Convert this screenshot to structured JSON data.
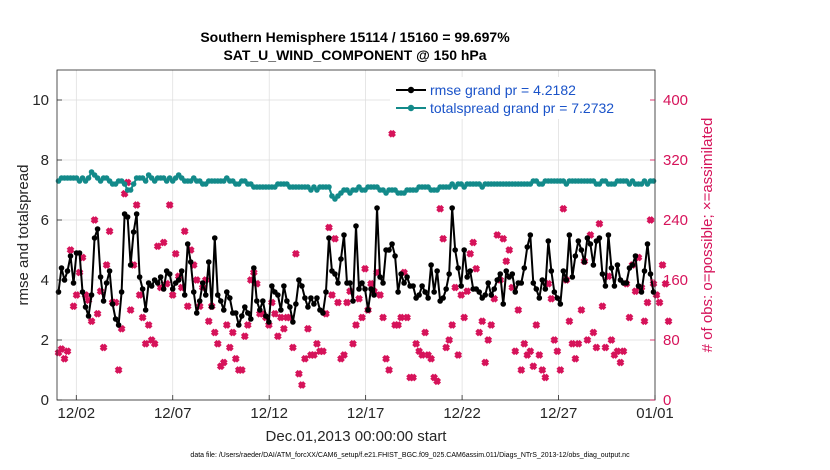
{
  "chart_data": {
    "type": "line",
    "title_line1": "Southern Hemisphere 15114 / 15160 = 99.697%",
    "title_line2": "SAT_U_WIND_COMPONENT @ 150 hPa",
    "xlabel": "Dec.01,2013 00:00:00 start",
    "ylabel_left": "rmse and totalspread",
    "ylabel_right": "# of obs: o=possible; ×=assimilated",
    "footer": "data file: /Users/raeder/DAI/ATM_forcXX/CAM6_setup/f.e21.FHIST_BGC.f09_025.CAM6assim.011/Diags_NTrS_2013-12/obs_diag_output.nc",
    "x_ticks": [
      "12/02",
      "12/07",
      "12/12",
      "12/17",
      "12/22",
      "12/27",
      "01/01"
    ],
    "y_left_ticks": [
      "0",
      "2",
      "4",
      "6",
      "8",
      "10"
    ],
    "y_right_ticks": [
      "0",
      "80",
      "160",
      "240",
      "320",
      "400"
    ],
    "ylim_left": [
      0,
      11
    ],
    "ylim_right": [
      0,
      440
    ],
    "colors": {
      "rmse": "#000000",
      "spread": "#138a8a",
      "obs": "#d6135a",
      "legend_text": "#1a53c9"
    },
    "series": [
      {
        "name": "rmse",
        "legend": "rmse grand pr = 4.2182",
        "values": [
          3.6,
          4.4,
          4.0,
          4.3,
          4.8,
          3.9,
          4.9,
          4.9,
          3.6,
          3.1,
          2.8,
          3.5,
          5.4,
          5.7,
          4.1,
          3.3,
          3.9,
          4.3,
          3.2,
          2.7,
          2.5,
          3.6,
          6.2,
          6.1,
          4.5,
          5.6,
          6.2,
          4.1,
          3.7,
          3.0,
          3.9,
          3.8,
          4.0,
          3.9,
          4.1,
          3.7,
          4.3,
          4.2,
          3.7,
          3.9,
          4.0,
          4.3,
          3.5,
          5.2,
          4.6,
          3.6,
          2.9,
          3.3,
          3.9,
          3.5,
          4.6,
          3.1,
          5.4,
          3.5,
          3.3,
          3.0,
          3.6,
          3.4,
          2.9,
          2.9,
          2.5,
          2.8,
          3.1,
          2.9,
          2.7,
          4.4,
          3.3,
          3.0,
          3.3,
          2.8,
          2.6,
          3.8,
          3.6,
          3.5,
          3.0,
          3.8,
          3.3,
          3.1,
          2.6,
          3.2,
          4.0,
          3.8,
          3.4,
          3.1,
          3.4,
          3.2,
          3.4,
          3.0,
          2.9,
          3.6,
          5.4,
          4.3,
          4.2,
          3.9,
          4.7,
          5.5,
          3.9,
          3.9,
          3.3,
          5.8,
          3.7,
          3.9,
          3.7,
          3.0,
          3.7,
          3.5,
          6.4,
          4.1,
          3.9,
          5.0,
          5.0,
          5.2,
          4.8,
          3.6,
          4.2,
          3.9,
          4.1,
          3.8,
          3.8,
          3.4,
          3.5,
          3.8,
          3.6,
          3.4,
          4.5,
          3.6,
          4.3,
          3.3,
          3.4,
          3.7,
          4.2,
          6.4,
          5.0,
          4.4,
          3.8,
          5.0,
          4.1,
          4.3,
          3.7,
          3.7,
          3.6,
          3.4,
          3.5,
          3.9,
          3.5,
          3.7,
          4.0,
          4.2,
          3.2,
          4.3,
          4.1,
          4.2,
          3.6,
          3.9,
          3.9,
          4.4,
          5.1,
          5.5,
          3.9,
          3.7,
          3.4,
          4.0,
          3.7,
          5.3,
          4.3,
          3.6,
          3.4,
          3.2,
          4.3,
          4.0,
          5.5,
          4.1,
          4.8,
          5.3,
          5.0,
          4.6,
          5.4,
          5.2,
          4.5,
          5.3,
          5.4,
          4.2,
          3.8,
          5.5,
          4.4,
          3.8,
          4.5,
          4.0,
          3.9,
          3.9,
          4.4,
          4.5,
          4.8,
          3.8,
          3.6,
          4.3,
          5.2,
          4.2,
          3.6
        ]
      },
      {
        "name": "totalspread",
        "legend": "totalspread grand pr = 7.2732",
        "values": [
          7.3,
          7.4,
          7.4,
          7.4,
          7.4,
          7.4,
          7.4,
          7.3,
          7.4,
          7.3,
          7.4,
          7.6,
          7.5,
          7.4,
          7.3,
          7.4,
          7.4,
          7.3,
          7.2,
          7.2,
          7.3,
          7.3,
          7.2,
          7.0,
          7.0,
          7.2,
          7.4,
          7.4,
          7.4,
          7.3,
          7.5,
          7.4,
          7.3,
          7.4,
          7.4,
          7.4,
          7.3,
          7.4,
          7.3,
          7.4,
          7.5,
          7.4,
          7.3,
          7.3,
          7.3,
          7.4,
          7.3,
          7.3,
          7.2,
          7.2,
          7.3,
          7.3,
          7.3,
          7.3,
          7.3,
          7.3,
          7.4,
          7.3,
          7.3,
          7.2,
          7.2,
          7.3,
          7.3,
          7.2,
          7.2,
          7.1,
          7.1,
          7.1,
          7.1,
          7.1,
          7.1,
          7.1,
          7.1,
          7.2,
          7.2,
          7.2,
          7.2,
          7.1,
          7.1,
          7.1,
          7.1,
          7.1,
          7.1,
          7.1,
          7.0,
          7.1,
          7.0,
          7.1,
          7.1,
          7.1,
          7.1,
          6.8,
          6.7,
          6.8,
          6.9,
          7.0,
          7.0,
          6.9,
          7.0,
          7.0,
          7.1,
          7.0,
          7.0,
          7.1,
          7.1,
          7.1,
          7.1,
          7.0,
          7.0,
          6.9,
          7.0,
          7.0,
          7.0,
          6.9,
          6.9,
          6.9,
          7.0,
          7.0,
          7.0,
          7.0,
          7.1,
          7.1,
          7.1,
          7.1,
          7.0,
          7.0,
          7.0,
          7.1,
          7.1,
          7.1,
          7.1,
          7.2,
          7.1,
          7.2,
          7.2,
          7.1,
          7.2,
          7.2,
          7.2,
          7.2,
          7.2,
          7.1,
          7.2,
          7.2,
          7.2,
          7.2,
          7.2,
          7.2,
          7.2,
          7.2,
          7.2,
          7.2,
          7.2,
          7.2,
          7.2,
          7.2,
          7.2,
          7.2,
          7.3,
          7.3,
          7.2,
          7.2,
          7.3,
          7.3,
          7.3,
          7.3,
          7.3,
          7.3,
          7.3,
          7.2,
          7.3,
          7.3,
          7.3,
          7.3,
          7.3,
          7.3,
          7.3,
          7.3,
          7.3,
          7.2,
          7.2,
          7.3,
          7.3,
          7.2,
          7.2,
          7.2,
          7.3,
          7.3,
          7.3,
          7.3,
          7.2,
          7.3,
          7.2,
          7.2,
          7.2,
          7.3,
          7.2,
          7.3,
          7.3
        ]
      },
      {
        "name": "obs_assimilated",
        "legend": "",
        "axis": "right",
        "values": [
          63,
          68,
          55,
          65,
          200,
          125,
          140,
          170,
          190,
          140,
          133,
          105,
          240,
          115,
          145,
          70,
          180,
          225,
          130,
          130,
          40,
          95,
          275,
          290,
          120,
          180,
          260,
          140,
          110,
          75,
          100,
          80,
          75,
          205,
          150,
          210,
          155,
          260,
          140,
          195,
          165,
          150,
          225,
          125,
          200,
          180,
          160,
          125,
          150,
          160,
          105,
          125,
          90,
          75,
          45,
          50,
          100,
          70,
          90,
          55,
          40,
          40,
          85,
          100,
          160,
          170,
          155,
          115,
          115,
          110,
          100,
          130,
          115,
          85,
          110,
          95,
          110,
          110,
          70,
          195,
          35,
          20,
          55,
          95,
          60,
          60,
          75,
          65,
          65,
          115,
          230,
          140,
          215,
          130,
          55,
          60,
          130,
          145,
          75,
          100,
          135,
          110,
          175,
          120,
          155,
          145,
          170,
          140,
          110,
          55,
          40,
          355,
          100,
          100,
          110,
          170,
          110,
          30,
          30,
          75,
          65,
          60,
          90,
          60,
          55,
          30,
          25,
          255,
          215,
          70,
          80,
          100,
          150,
          60,
          140,
          110,
          145,
          195,
          210,
          175,
          90,
          105,
          50,
          80,
          100,
          135,
          220,
          160,
          215,
          185,
          200,
          150,
          65,
          120,
          40,
          75,
          60,
          65,
          45,
          100,
          60,
          40,
          30,
          155,
          135,
          80,
          65,
          40,
          255,
          160,
          105,
          75,
          55,
          75,
          120,
          185,
          80,
          220,
          90,
          70,
          235,
          125,
          70,
          165,
          80,
          60,
          65,
          50,
          65,
          155,
          110,
          180,
          145,
          190,
          150,
          105,
          130,
          240,
          155,
          140,
          130,
          180,
          155,
          105
        ]
      }
    ]
  }
}
